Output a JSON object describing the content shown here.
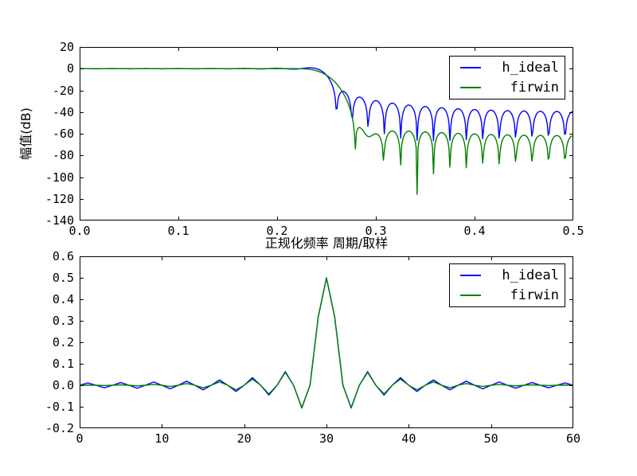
{
  "figure": {
    "background": "#ffffff"
  },
  "colors": {
    "h_ideal": "#0000ff",
    "firwin": "#008000",
    "axis": "#000000"
  },
  "legend": {
    "position": "upper right",
    "items": [
      {
        "label": "h_ideal",
        "color": "#0000ff"
      },
      {
        "label": "firwin",
        "color": "#008000"
      }
    ]
  },
  "chart_data": [
    {
      "type": "line",
      "title": "",
      "xlabel": "正规化频率 周期/取样",
      "ylabel": "幅值(dB)",
      "xlim": [
        0,
        0.5
      ],
      "ylim": [
        -140,
        20
      ],
      "xticks": [
        0,
        0.1,
        0.2,
        0.3,
        0.4,
        0.5
      ],
      "xtick_labels": [
        "0.0",
        "0.1",
        "0.2",
        "0.3",
        "0.4",
        "0.5"
      ],
      "yticks": [
        20,
        0,
        -20,
        -40,
        -60,
        -80,
        -100,
        -120,
        -140
      ],
      "ytick_labels": [
        "20",
        "0",
        "-20",
        "-40",
        "-60",
        "-80",
        "-100",
        "-120",
        "-140"
      ],
      "grid": false,
      "legend_entries": [
        "h_ideal",
        "firwin"
      ],
      "series": [
        {
          "name": "h_ideal",
          "color": "#0000ff",
          "transform": "20*log10(|DTFT(h)|) over 512 freqs in [0,0.5)",
          "source": "h_ideal"
        },
        {
          "name": "firwin",
          "color": "#008000",
          "transform": "20*log10(|DTFT(h)|) over 512 freqs in [0,0.5)",
          "source": "firwin"
        }
      ],
      "visible_features": {
        "passband_level_db": 0,
        "h_ideal_first_sidelobe_db": -21,
        "h_ideal_far_sidelobes_db": -40,
        "firwin_first_sidelobe_db": -53,
        "firwin_far_sidelobes_db": -62,
        "firwin_deep_notch": {
          "x": 0.34,
          "db": -122
        },
        "cutoff_frequency": 0.25
      }
    },
    {
      "type": "line",
      "title": "",
      "xlabel": "",
      "ylabel": "",
      "xlim": [
        0,
        60
      ],
      "ylim": [
        -0.2,
        0.6
      ],
      "xticks": [
        0,
        10,
        20,
        30,
        40,
        50,
        60
      ],
      "xtick_labels": [
        "0",
        "10",
        "20",
        "30",
        "40",
        "50",
        "60"
      ],
      "yticks": [
        0.6,
        0.5,
        0.4,
        0.3,
        0.2,
        0.1,
        0.0,
        -0.1,
        -0.2
      ],
      "ytick_labels": [
        "0.6",
        "0.5",
        "0.4",
        "0.3",
        "0.2",
        "0.1",
        "0.0",
        "-0.1",
        "-0.2"
      ],
      "grid": false,
      "legend_entries": [
        "h_ideal",
        "firwin"
      ],
      "series": [
        {
          "name": "h_ideal",
          "color": "#0000ff",
          "values": [
            0.0,
            0.010976,
            0.0,
            -0.011789,
            0.0,
            0.012732,
            0.0,
            -0.013839,
            0.0,
            0.015158,
            0.0,
            -0.016753,
            0.0,
            0.018724,
            0.0,
            -0.021221,
            0.0,
            0.024485,
            0.0,
            -0.028937,
            0.0,
            0.035368,
            0.0,
            -0.045473,
            0.0,
            0.063662,
            0.0,
            -0.106103,
            0.0,
            0.31831,
            0.5,
            0.31831,
            0.0,
            -0.106103,
            0.0,
            0.063662,
            0.0,
            -0.045473,
            0.0,
            0.035368,
            0.0,
            -0.028937,
            0.0,
            0.024485,
            0.0,
            -0.021221,
            0.0,
            0.018724,
            0.0,
            -0.016753,
            0.0,
            0.015158,
            0.0,
            -0.013839,
            0.0,
            0.012732,
            0.0,
            -0.011789,
            0.0,
            0.010976,
            0.0
          ]
        },
        {
          "name": "firwin",
          "color": "#008000",
          "values": [
            0.0,
            0.000905,
            0.0,
            -0.001207,
            0.0,
            0.001802,
            0.0,
            -0.00274,
            0.0,
            0.004083,
            0.0,
            -0.005907,
            0.0,
            0.008313,
            0.0,
            -0.01145,
            0.0,
            0.015551,
            0.0,
            -0.021023,
            0.0,
            0.028638,
            0.0,
            -0.040067,
            0.0,
            0.059688,
            0.0,
            -0.103628,
            0.0,
            0.317244,
            0.499582,
            0.317244,
            0.0,
            -0.103628,
            0.0,
            0.059688,
            0.0,
            -0.040067,
            0.0,
            0.028638,
            0.0,
            -0.021023,
            0.0,
            0.015551,
            0.0,
            -0.01145,
            0.0,
            0.008313,
            0.0,
            -0.005907,
            0.0,
            0.004083,
            0.0,
            -0.00274,
            0.0,
            0.001802,
            0.0,
            -0.001207,
            0.0,
            0.000905,
            0.0
          ]
        }
      ]
    }
  ]
}
